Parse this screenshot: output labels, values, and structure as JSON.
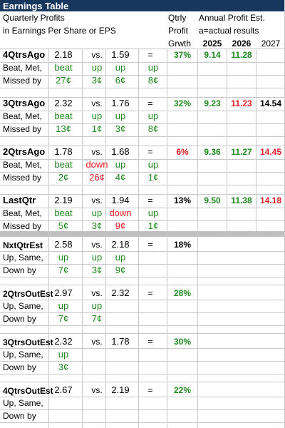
{
  "title": "Earnings Table",
  "header": {
    "line1": "Quarterly Profits",
    "line2": "in Earnings Per Share or EPS",
    "qtrly1": "Qtrly",
    "qtrly2": "Profit",
    "qtrly3": "Grwth",
    "annual1": "Annual Profit Est.",
    "annual2": "a=actual results",
    "years": [
      "2025",
      "2026",
      "2027"
    ]
  },
  "sections": [
    {
      "label": "4QtrsAgo",
      "eps": "2.18",
      "vs": "vs.",
      "prior": "1.59",
      "eq": "=",
      "growth": "37%",
      "growth_color": "green",
      "annual": [
        {
          "v": "9.14",
          "c": "green"
        },
        {
          "v": "11.28",
          "c": "green"
        },
        {
          "v": "",
          "c": "black"
        }
      ],
      "sub1": "Beat, Met,",
      "sub2": "Missed by",
      "words": [
        {
          "v": "beat",
          "c": "green"
        },
        {
          "v": "up",
          "c": "green"
        },
        {
          "v": "up",
          "c": "green"
        },
        {
          "v": "up",
          "c": "green"
        }
      ],
      "amounts": [
        {
          "v": "27¢",
          "c": "green"
        },
        {
          "v": "3¢",
          "c": "green"
        },
        {
          "v": "6¢",
          "c": "green"
        },
        {
          "v": "8¢",
          "c": "green"
        }
      ]
    },
    {
      "label": "3QtrsAgo",
      "eps": "2.32",
      "vs": "vs.",
      "prior": "1.76",
      "eq": "=",
      "growth": "32%",
      "growth_color": "green",
      "annual": [
        {
          "v": "9.23",
          "c": "green"
        },
        {
          "v": "11.23",
          "c": "red"
        },
        {
          "v": "14.54",
          "c": "black"
        }
      ],
      "sub1": "Beat, Met,",
      "sub2": "Missed by",
      "words": [
        {
          "v": "beat",
          "c": "green"
        },
        {
          "v": "up",
          "c": "green"
        },
        {
          "v": "up",
          "c": "green"
        },
        {
          "v": "up",
          "c": "green"
        }
      ],
      "amounts": [
        {
          "v": "13¢",
          "c": "green"
        },
        {
          "v": "1¢",
          "c": "green"
        },
        {
          "v": "3¢",
          "c": "green"
        },
        {
          "v": "8¢",
          "c": "green"
        }
      ]
    },
    {
      "label": "2QtrsAgo",
      "eps": "1.78",
      "vs": "vs.",
      "prior": "1.68",
      "eq": "=",
      "growth": "6%",
      "growth_color": "red",
      "annual": [
        {
          "v": "9.36",
          "c": "green"
        },
        {
          "v": "11.27",
          "c": "green"
        },
        {
          "v": "14.45",
          "c": "red"
        }
      ],
      "sub1": "Beat, Met,",
      "sub2": "Missed by",
      "words": [
        {
          "v": "beat",
          "c": "green"
        },
        {
          "v": "down",
          "c": "red"
        },
        {
          "v": "up",
          "c": "green"
        },
        {
          "v": "up",
          "c": "green"
        }
      ],
      "amounts": [
        {
          "v": "2¢",
          "c": "green"
        },
        {
          "v": "26¢",
          "c": "red"
        },
        {
          "v": "4¢",
          "c": "green"
        },
        {
          "v": "1¢",
          "c": "green"
        }
      ]
    },
    {
      "label": "LastQtr",
      "eps": "2.19",
      "vs": "vs.",
      "prior": "1.94",
      "eq": "=",
      "growth": "13%",
      "growth_color": "black",
      "annual": [
        {
          "v": "9.50",
          "c": "green"
        },
        {
          "v": "11.38",
          "c": "green"
        },
        {
          "v": "14.18",
          "c": "red"
        }
      ],
      "sub1": "Beat, Met,",
      "sub2": "Missed by",
      "words": [
        {
          "v": "beat",
          "c": "green"
        },
        {
          "v": "up",
          "c": "green"
        },
        {
          "v": "down",
          "c": "red"
        },
        {
          "v": "up",
          "c": "green"
        }
      ],
      "amounts": [
        {
          "v": "5¢",
          "c": "green"
        },
        {
          "v": "3¢",
          "c": "green"
        },
        {
          "v": "9¢",
          "c": "red"
        },
        {
          "v": "1¢",
          "c": "green"
        }
      ]
    }
  ],
  "estimates": [
    {
      "label": "NxtQtrEst",
      "eps": "2.58",
      "vs": "vs.",
      "prior": "2.18",
      "eq": "=",
      "growth": "18%",
      "growth_color": "black",
      "sub1": "Up, Same,",
      "sub2": "Down by",
      "words": [
        {
          "v": "up",
          "c": "green"
        },
        {
          "v": "up",
          "c": "green"
        },
        {
          "v": "up",
          "c": "green"
        }
      ],
      "amounts": [
        {
          "v": "7¢",
          "c": "green"
        },
        {
          "v": "3¢",
          "c": "green"
        },
        {
          "v": "9¢",
          "c": "green"
        }
      ]
    },
    {
      "label": "2QtrsOutEst",
      "eps": "2.97",
      "vs": "vs.",
      "prior": "2.32",
      "eq": "=",
      "growth": "28%",
      "growth_color": "green",
      "sub1": "Up, Same,",
      "sub2": "Down by",
      "words": [
        {
          "v": "up",
          "c": "green"
        },
        {
          "v": "up",
          "c": "green"
        },
        {
          "v": "",
          "c": "green"
        }
      ],
      "amounts": [
        {
          "v": "7¢",
          "c": "green"
        },
        {
          "v": "7¢",
          "c": "green"
        },
        {
          "v": "",
          "c": "green"
        }
      ]
    },
    {
      "label": "3QtrsOutEst",
      "eps": "2.32",
      "vs": "vs.",
      "prior": "1.78",
      "eq": "=",
      "growth": "30%",
      "growth_color": "green",
      "sub1": "Up, Same,",
      "sub2": "Down by",
      "words": [
        {
          "v": "up",
          "c": "green"
        },
        {
          "v": "",
          "c": "green"
        },
        {
          "v": "",
          "c": "green"
        }
      ],
      "amounts": [
        {
          "v": "3¢",
          "c": "green"
        },
        {
          "v": "",
          "c": "green"
        },
        {
          "v": "",
          "c": "green"
        }
      ]
    },
    {
      "label": "4QtrsOutEst",
      "eps": "2.67",
      "vs": "vs.",
      "prior": "2.19",
      "eq": "=",
      "growth": "22%",
      "growth_color": "green",
      "sub1": "Up, Same,",
      "sub2": "Down by",
      "words": [
        {
          "v": "",
          "c": "green"
        },
        {
          "v": "",
          "c": "green"
        },
        {
          "v": "",
          "c": "green"
        }
      ],
      "amounts": [
        {
          "v": "",
          "c": "green"
        },
        {
          "v": "",
          "c": "green"
        },
        {
          "v": "",
          "c": "green"
        }
      ]
    }
  ]
}
